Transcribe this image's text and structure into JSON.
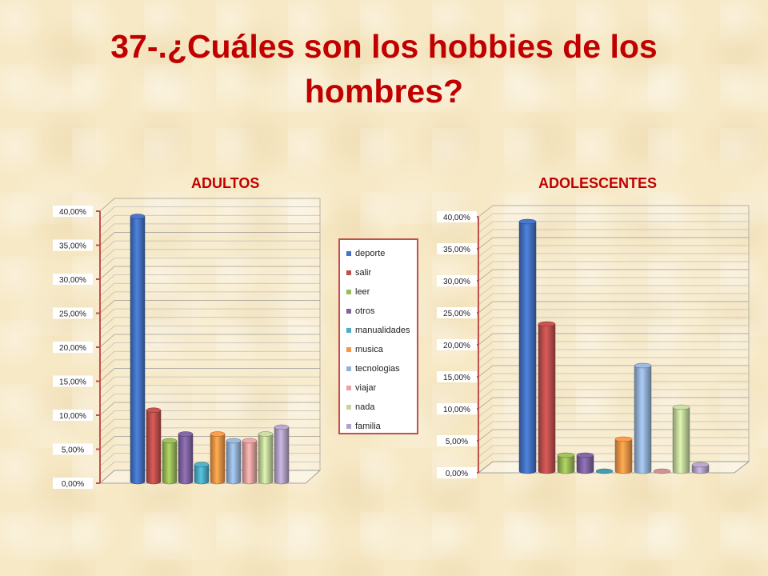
{
  "title": "37-.¿Cuáles son los hobbies de los hombres?",
  "legend": {
    "items": [
      {
        "label": "deporte",
        "color": "#4472c4"
      },
      {
        "label": "salir",
        "color": "#c0504d"
      },
      {
        "label": "leer",
        "color": "#9bbb59"
      },
      {
        "label": "otros",
        "color": "#8064a2"
      },
      {
        "label": "manualidades",
        "color": "#4bacc6"
      },
      {
        "label": "musica",
        "color": "#f79646"
      },
      {
        "label": "tecnologias",
        "color": "#95b3d7"
      },
      {
        "label": "viajar",
        "color": "#e6a3a1"
      },
      {
        "label": "nada",
        "color": "#c3d69b"
      },
      {
        "label": "familia",
        "color": "#b3a2c7"
      }
    ]
  },
  "chart_data": [
    {
      "type": "bar",
      "title": "ADULTOS",
      "categories": [
        "deporte",
        "salir",
        "leer",
        "otros",
        "manualidades",
        "musica",
        "tecnologias",
        "viajar",
        "nada",
        "familia"
      ],
      "values": [
        0.39,
        0.105,
        0.06,
        0.07,
        0.025,
        0.07,
        0.06,
        0.06,
        0.07,
        0.08
      ],
      "ylim": [
        0,
        0.4
      ],
      "yticks": [
        "0,00%",
        "5,00%",
        "10,00%",
        "15,00%",
        "20,00%",
        "25,00%",
        "30,00%",
        "35,00%",
        "40,00%"
      ],
      "grid": true
    },
    {
      "type": "bar",
      "title": "ADOLESCENTES",
      "categories": [
        "deporte",
        "salir",
        "leer",
        "otros",
        "manualidades",
        "musica",
        "tecnologias",
        "viajar",
        "nada",
        "familia"
      ],
      "values": [
        0.39,
        0.23,
        0.025,
        0.025,
        0.0,
        0.05,
        0.165,
        0.0,
        0.1,
        0.01
      ],
      "ylim": [
        0,
        0.4
      ],
      "yticks": [
        "0,00%",
        "5,00%",
        "10,00%",
        "15,00%",
        "20,00%",
        "25,00%",
        "30,00%",
        "35,00%",
        "40,00%"
      ],
      "grid": true
    }
  ]
}
